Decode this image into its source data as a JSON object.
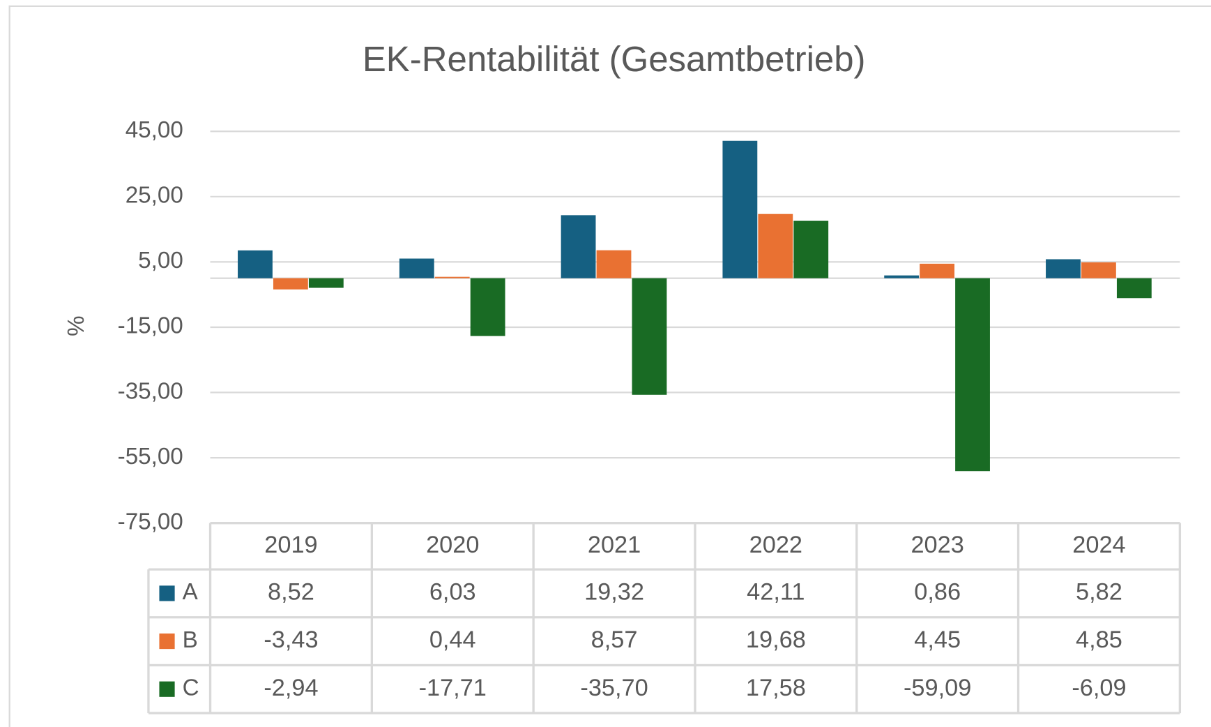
{
  "chart_data": {
    "type": "bar",
    "title": "EK-Rentabilität (Gesamtbetrieb)",
    "y_label": "%",
    "categories": [
      "2019",
      "2020",
      "2021",
      "2022",
      "2023",
      "2024"
    ],
    "series": [
      {
        "name": "A",
        "color": "#156082",
        "values": [
          8.52,
          6.03,
          19.32,
          42.11,
          0.86,
          5.82
        ],
        "value_labels": [
          "8,52",
          "6,03",
          "19,32",
          "42,11",
          "0,86",
          "5,82"
        ]
      },
      {
        "name": "B",
        "color": "#e97132",
        "values": [
          -3.43,
          0.44,
          8.57,
          19.68,
          4.45,
          4.85
        ],
        "value_labels": [
          "-3,43",
          "0,44",
          "8,57",
          "19,68",
          "4,45",
          "4,85"
        ]
      },
      {
        "name": "C",
        "color": "#196b24",
        "values": [
          -2.94,
          -17.71,
          -35.7,
          17.58,
          -59.09,
          -6.09
        ],
        "value_labels": [
          "-2,94",
          "-17,71",
          "-35,70",
          "17,58",
          "-59,09",
          "-6,09"
        ]
      }
    ],
    "ylim": [
      -75,
      45
    ],
    "yticks": [
      {
        "value": 45,
        "label": "45,00"
      },
      {
        "value": 25,
        "label": "25,00"
      },
      {
        "value": 5,
        "label": "5,00"
      },
      {
        "value": -15,
        "label": "-15,00"
      },
      {
        "value": -35,
        "label": "-35,00"
      },
      {
        "value": -55,
        "label": "-55,00"
      },
      {
        "value": -75,
        "label": "-75,00"
      }
    ],
    "grid": true,
    "data_table": true
  }
}
